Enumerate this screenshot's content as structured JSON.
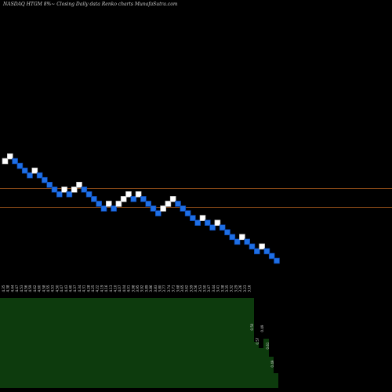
{
  "title": "NASDAQ HTGM 8%~  Closing Daily data  Renko  charts MunafaSutra.com",
  "colors": {
    "background": "#000000",
    "brick_up": "#ffffff",
    "brick_down": "#1e6fe6",
    "brick_down_edge": "#0a3fa0",
    "reference_line": "#8a4a18",
    "volume_fill": "#0d3b0d",
    "price_label": "#d8d8d8"
  },
  "chart_data": {
    "type": "renko",
    "brick_size_percent": 8,
    "reference_lines": [
      5.53,
      3.68
    ],
    "bricks": [
      {
        "dir": "up",
        "level": 10
      },
      {
        "dir": "up",
        "level": 11
      },
      {
        "dir": "down",
        "level": 10
      },
      {
        "dir": "down",
        "level": 9
      },
      {
        "dir": "down",
        "level": 8
      },
      {
        "dir": "down",
        "level": 7
      },
      {
        "dir": "up",
        "level": 8
      },
      {
        "dir": "down",
        "level": 7
      },
      {
        "dir": "down",
        "level": 6
      },
      {
        "dir": "down",
        "level": 5
      },
      {
        "dir": "down",
        "level": 4
      },
      {
        "dir": "down",
        "level": 3
      },
      {
        "dir": "up",
        "level": 4
      },
      {
        "dir": "down",
        "level": 3
      },
      {
        "dir": "up",
        "level": 4
      },
      {
        "dir": "up",
        "level": 5
      },
      {
        "dir": "down",
        "level": 4
      },
      {
        "dir": "down",
        "level": 3
      },
      {
        "dir": "down",
        "level": 2
      },
      {
        "dir": "down",
        "level": 1
      },
      {
        "dir": "down",
        "level": 0
      },
      {
        "dir": "up",
        "level": 1
      },
      {
        "dir": "down",
        "level": 0
      },
      {
        "dir": "up",
        "level": 1
      },
      {
        "dir": "up",
        "level": 2
      },
      {
        "dir": "up",
        "level": 3
      },
      {
        "dir": "down",
        "level": 2
      },
      {
        "dir": "up",
        "level": 3
      },
      {
        "dir": "down",
        "level": 2
      },
      {
        "dir": "down",
        "level": 1
      },
      {
        "dir": "down",
        "level": 0
      },
      {
        "dir": "down",
        "level": -1
      },
      {
        "dir": "up",
        "level": 0
      },
      {
        "dir": "up",
        "level": 1
      },
      {
        "dir": "up",
        "level": 2
      },
      {
        "dir": "down",
        "level": 1
      },
      {
        "dir": "down",
        "level": 0
      },
      {
        "dir": "down",
        "level": -1
      },
      {
        "dir": "down",
        "level": -2
      },
      {
        "dir": "down",
        "level": -3
      },
      {
        "dir": "up",
        "level": -2
      },
      {
        "dir": "down",
        "level": -3
      },
      {
        "dir": "down",
        "level": -4
      },
      {
        "dir": "up",
        "level": -3
      },
      {
        "dir": "down",
        "level": -4
      },
      {
        "dir": "down",
        "level": -5
      },
      {
        "dir": "down",
        "level": -6
      },
      {
        "dir": "down",
        "level": -7
      },
      {
        "dir": "up",
        "level": -6
      },
      {
        "dir": "down",
        "level": -7
      },
      {
        "dir": "down",
        "level": -8
      },
      {
        "dir": "down",
        "level": -9
      },
      {
        "dir": "up",
        "level": -8
      },
      {
        "dir": "down",
        "level": -9
      },
      {
        "dir": "down",
        "level": -10
      },
      {
        "dir": "down",
        "level": -11
      }
    ],
    "price_labels": [
      "4.35",
      "4.38",
      "4.44",
      "4.47",
      "4.53",
      "4.56",
      "4.59",
      "4.62",
      "4.60",
      "4.58",
      "4.55",
      "4.53",
      "4.50",
      "4.47",
      "4.43",
      "4.40",
      "4.37",
      "4.34",
      "4.31",
      "4.28",
      "4.25",
      "4.22",
      "4.19",
      "4.16",
      "4.13",
      "4.10",
      "4.07",
      "4.04",
      "4.01",
      "3.98",
      "3.95",
      "3.92",
      "3.89",
      "3.86",
      "3.83",
      "3.80",
      "3.77",
      "3.74",
      "3.71",
      "3.68",
      "3.65",
      "3.62",
      "3.59",
      "3.56",
      "3.53",
      "3.50",
      "3.47",
      "3.44",
      "3.41",
      "3.38",
      "3.35",
      "3.32",
      "3.29",
      "3.26",
      "3.23",
      "3.16"
    ],
    "volume_labels": [
      "0.50",
      "0.57",
      "0.49",
      "0.61",
      "0.49"
    ]
  }
}
